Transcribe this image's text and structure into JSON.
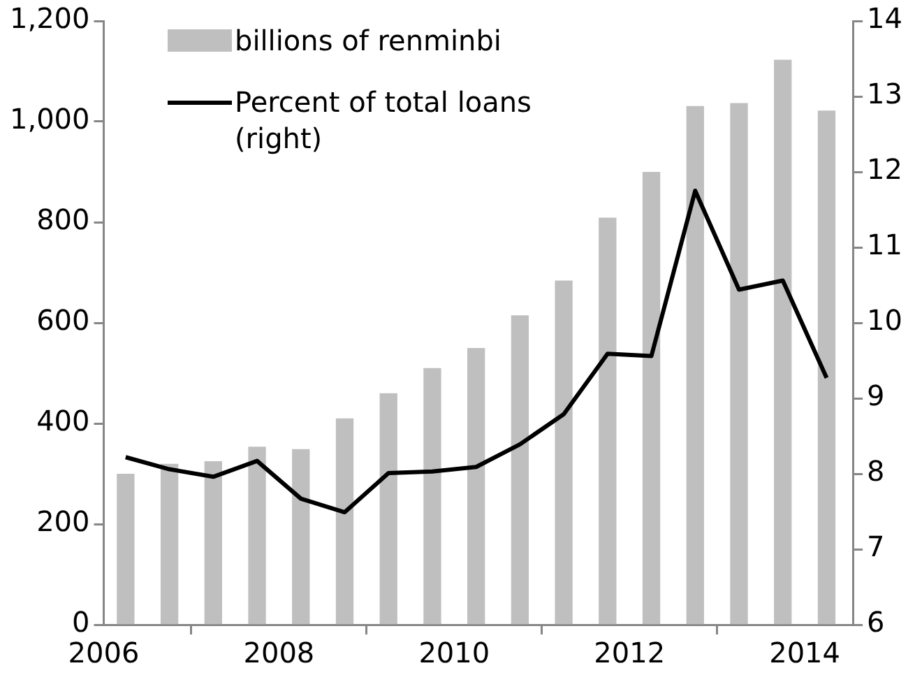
{
  "chart_data": {
    "type": "bar",
    "x": [
      2006.25,
      2006.75,
      2007.25,
      2007.75,
      2008.25,
      2008.75,
      2009.25,
      2009.75,
      2010.25,
      2010.75,
      2011.25,
      2011.75,
      2012.25,
      2012.75,
      2013.25,
      2013.75,
      2014.25
    ],
    "series": [
      {
        "name": "billions of renminbi",
        "color": "#bfbfbf",
        "values": [
          299,
          319,
          324,
          353,
          348,
          409,
          459,
          509,
          549,
          614,
          683,
          808,
          899,
          1030,
          1036,
          1122,
          1021
        ]
      },
      {
        "name": "Percent of total loans (right)",
        "type": "line",
        "axis": "y2",
        "color": "#000000",
        "values": [
          8.22,
          8.06,
          7.96,
          8.17,
          7.67,
          7.49,
          8.01,
          8.03,
          8.09,
          8.39,
          8.79,
          9.59,
          9.56,
          11.75,
          10.44,
          10.56,
          9.27
        ]
      }
    ],
    "xlim": [
      2006,
      2014.55
    ],
    "xticks": [
      2006,
      2008,
      2010,
      2012,
      2014
    ],
    "ylim": [
      0,
      1200
    ],
    "yticks": [
      0,
      200,
      400,
      600,
      800,
      {
        "value": 1000,
        "label": "1,000"
      },
      {
        "value": 1200,
        "label": "1,200"
      }
    ],
    "y2lim": [
      6,
      14
    ],
    "y2ticks": [
      6,
      7,
      8,
      9,
      10,
      11,
      12,
      13,
      14
    ],
    "grid": false,
    "legend": "top left",
    "marker": "none",
    "line_style": "solid"
  }
}
